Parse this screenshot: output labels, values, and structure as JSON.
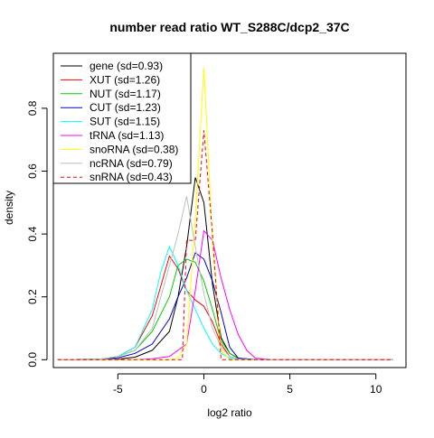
{
  "chart_data": {
    "type": "line",
    "title": "number read ratio WT_S288C/dcp2_37C",
    "xlabel": "log2 ratio",
    "ylabel": "density",
    "xlim": [
      -8.75,
      11.75
    ],
    "ylim": [
      -0.025,
      0.975
    ],
    "xticks": [
      -5,
      0,
      5,
      10
    ],
    "yticks": [
      0.0,
      0.2,
      0.4,
      0.6,
      0.8
    ],
    "xtick_labels": [
      "-5",
      "0",
      "5",
      "10"
    ],
    "ytick_labels": [
      "0.0",
      "0.2",
      "0.4",
      "0.6",
      "0.8"
    ],
    "grid": false,
    "legend_position": "top-left",
    "series": [
      {
        "name": "gene (sd=0.93)",
        "color": "#000000",
        "dash": false,
        "x": [
          -8.5,
          -6,
          -5,
          -4,
          -3,
          -2,
          -1.5,
          -1,
          -0.5,
          0,
          0.5,
          1,
          1.5,
          2,
          3,
          4,
          11
        ],
        "y": [
          0,
          0,
          0.002,
          0.008,
          0.03,
          0.09,
          0.2,
          0.36,
          0.58,
          0.5,
          0.24,
          0.07,
          0.02,
          0.005,
          0.001,
          0,
          0
        ]
      },
      {
        "name": "XUT (sd=1.26)",
        "color": "#FF0000",
        "dash": false,
        "x": [
          -8.5,
          -6,
          -5,
          -4,
          -3,
          -2,
          -1.5,
          -1,
          -0.5,
          0,
          0.5,
          1,
          1.5,
          2,
          3,
          11
        ],
        "y": [
          0,
          0.002,
          0.01,
          0.04,
          0.14,
          0.33,
          0.29,
          0.22,
          0.19,
          0.17,
          0.12,
          0.05,
          0.01,
          0.003,
          0,
          0
        ]
      },
      {
        "name": "NUT (sd=1.17)",
        "color": "#00CD00",
        "dash": false,
        "x": [
          -8.5,
          -6,
          -5,
          -4,
          -3,
          -2,
          -1.5,
          -1,
          -0.5,
          0,
          0.5,
          1,
          1.5,
          2,
          3,
          11
        ],
        "y": [
          0,
          0.002,
          0.01,
          0.03,
          0.09,
          0.2,
          0.3,
          0.32,
          0.31,
          0.25,
          0.16,
          0.06,
          0.02,
          0.005,
          0,
          0
        ]
      },
      {
        "name": "CUT (sd=1.23)",
        "color": "#0000CD",
        "dash": false,
        "x": [
          -8.5,
          -6,
          -5,
          -4,
          -3,
          -2,
          -1.5,
          -1,
          -0.5,
          0,
          0.5,
          1,
          1.5,
          2,
          3,
          11
        ],
        "y": [
          0,
          0.002,
          0.006,
          0.02,
          0.05,
          0.13,
          0.2,
          0.26,
          0.34,
          0.32,
          0.25,
          0.15,
          0.04,
          0.005,
          0,
          0
        ]
      },
      {
        "name": "SUT (sd=1.15)",
        "color": "#00FFFF",
        "dash": false,
        "x": [
          -8.5,
          -6,
          -5,
          -4,
          -3,
          -2.5,
          -2,
          -1.5,
          -1,
          -0.5,
          0,
          0.5,
          1,
          1.5,
          2,
          3,
          11
        ],
        "y": [
          0,
          0.002,
          0.01,
          0.04,
          0.16,
          0.28,
          0.36,
          0.3,
          0.22,
          0.16,
          0.1,
          0.05,
          0.02,
          0.005,
          0.001,
          0,
          0
        ]
      },
      {
        "name": "tRNA (sd=1.13)",
        "color": "#FF00FF",
        "dash": false,
        "x": [
          -8.5,
          -4,
          -3,
          -2,
          -1,
          -0.5,
          0,
          0.5,
          1,
          1.5,
          2,
          2.5,
          3,
          4,
          11
        ],
        "y": [
          0,
          0,
          0.003,
          0.01,
          0.05,
          0.22,
          0.41,
          0.38,
          0.26,
          0.16,
          0.08,
          0.03,
          0.005,
          0,
          0
        ]
      },
      {
        "name": "snoRNA (sd=0.38)",
        "color": "#FFFF00",
        "dash": false,
        "x": [
          -8.5,
          -2,
          -1.5,
          -1,
          -0.5,
          0,
          0.5,
          1,
          1.5,
          11
        ],
        "y": [
          0,
          0,
          0.005,
          0.05,
          0.45,
          0.93,
          0.38,
          0.03,
          0,
          0
        ]
      },
      {
        "name": "ncRNA (sd=0.79)",
        "color": "#BEBEBE",
        "dash": false,
        "x": [
          -8.5,
          -6,
          -5,
          -4,
          -3,
          -2,
          -1.5,
          -1,
          -0.5,
          0,
          0.5,
          1,
          1.5,
          2,
          3,
          11
        ],
        "y": [
          0,
          0.002,
          0.01,
          0.03,
          0.1,
          0.3,
          0.4,
          0.52,
          0.36,
          0.21,
          0.1,
          0.04,
          0.01,
          0.002,
          0,
          0
        ]
      },
      {
        "name": "snRNA (sd=0.43)",
        "color": "#FF0000",
        "dash": true,
        "x": [
          -8.5,
          -1.25,
          -1,
          -0.5,
          0,
          0.5,
          1,
          11
        ],
        "y": [
          0,
          0,
          0.38,
          0.38,
          0.73,
          0.4,
          0,
          0
        ]
      }
    ]
  }
}
